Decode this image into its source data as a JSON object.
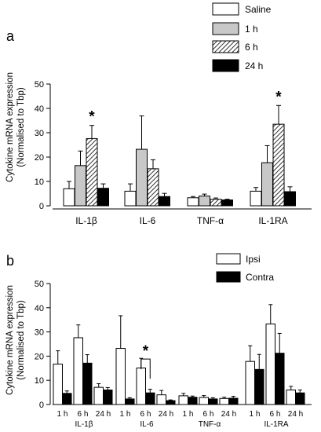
{
  "chart_data": [
    {
      "panel": "a",
      "type": "bar",
      "ylabel": [
        "Cytokine mRNA expression",
        "(Normalised to Tbp)"
      ],
      "ylim": [
        0,
        50
      ],
      "yticks": [
        0,
        10,
        20,
        30,
        40,
        50
      ],
      "categories": [
        "IL-1β",
        "IL-6",
        "TNF-α",
        "IL-1RA"
      ],
      "legend_position": "top-right",
      "series": [
        {
          "name": "Saline",
          "fill": "white",
          "values": [
            7,
            6,
            3.3,
            6
          ],
          "errors": [
            3,
            3,
            0.5,
            1.5
          ]
        },
        {
          "name": "1 h",
          "fill": "gray",
          "values": [
            16.5,
            23.2,
            4,
            17.7
          ],
          "errors": [
            6,
            13.7,
            0.8,
            7
          ]
        },
        {
          "name": "6 h",
          "fill": "hatched",
          "values": [
            27.6,
            15.2,
            2.7,
            33.5
          ],
          "errors": [
            5.4,
            3.7,
            0.5,
            7.7
          ]
        },
        {
          "name": "24 h",
          "fill": "black",
          "values": [
            7.2,
            3.8,
            2.4,
            5.8
          ],
          "errors": [
            1.8,
            1.3,
            0.3,
            2
          ]
        }
      ],
      "annotations": [
        {
          "text": "*",
          "category": 0,
          "series": 2
        },
        {
          "text": "*",
          "category": 3,
          "series": 2
        }
      ]
    },
    {
      "panel": "b",
      "type": "bar",
      "ylabel": [
        "Cytokine mRNA expression",
        "(Normalised to Tbp)"
      ],
      "ylim": [
        0,
        50
      ],
      "yticks": [
        0,
        10,
        20,
        30,
        40,
        50
      ],
      "categories": [
        "IL-1β",
        "IL-6",
        "TNF-α",
        "IL-1RA"
      ],
      "subcategories": [
        "1 h",
        "6 h",
        "24 h"
      ],
      "legend_position": "top-right",
      "series": [
        {
          "name": "Ipsi",
          "fill": "white",
          "values": [
            [
              16.7,
              27.6,
              7.1
            ],
            [
              23.2,
              15.1,
              4
            ],
            [
              3.6,
              2.9,
              2.5
            ],
            [
              17.8,
              33.3,
              6
            ]
          ],
          "errors": [
            [
              5.5,
              5.3,
              1.5
            ],
            [
              13.5,
              4,
              1.8
            ],
            [
              1,
              0.8,
              0.5
            ],
            [
              6.5,
              8,
              1.5
            ]
          ]
        },
        {
          "name": "Contra",
          "fill": "black",
          "values": [
            [
              4.6,
              17.1,
              6
            ],
            [
              2.3,
              4.8,
              1.6
            ],
            [
              3,
              2.3,
              2.6
            ],
            [
              14.5,
              21.2,
              4.8
            ]
          ],
          "errors": [
            [
              1,
              3.5,
              1
            ],
            [
              0.5,
              1.5,
              0.3
            ],
            [
              0.5,
              0.5,
              0.8
            ],
            [
              6.2,
              8.2,
              1.2
            ]
          ]
        }
      ],
      "annotations": [
        {
          "text": "*",
          "category": 1,
          "subcategory": 1,
          "bracket": true
        }
      ]
    }
  ]
}
